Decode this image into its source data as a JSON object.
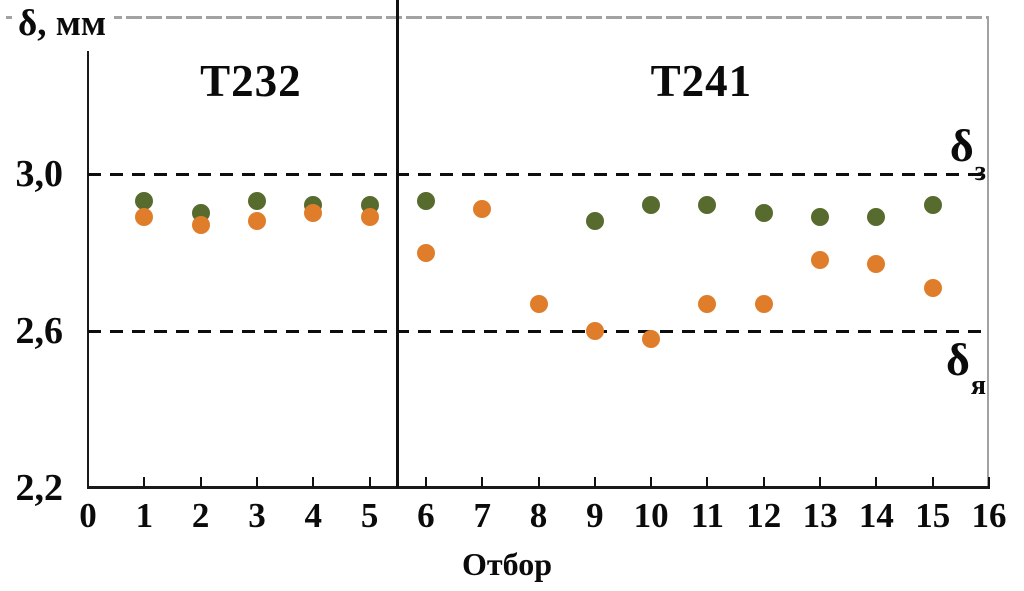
{
  "chart_data": {
    "type": "scatter",
    "title": "",
    "ylabel": "δ, мм",
    "xlabel": "Отбор",
    "xlim": [
      0,
      16
    ],
    "ylim": [
      2.2,
      3.4
    ],
    "grid": false,
    "legend": "none",
    "x_ticks": [
      {
        "label": "0",
        "value": 0
      },
      {
        "label": "1",
        "value": 1
      },
      {
        "label": "2",
        "value": 2
      },
      {
        "label": "3",
        "value": 3
      },
      {
        "label": "4",
        "value": 4
      },
      {
        "label": "5",
        "value": 5
      },
      {
        "label": "6",
        "value": 6
      },
      {
        "label": "7",
        "value": 7
      },
      {
        "label": "8",
        "value": 8
      },
      {
        "label": "9",
        "value": 9
      },
      {
        "label": "10",
        "value": 10
      },
      {
        "label": "11",
        "value": 11
      },
      {
        "label": "12",
        "value": 12
      },
      {
        "label": "13",
        "value": 13
      },
      {
        "label": "14",
        "value": 14
      },
      {
        "label": "15",
        "value": 15
      },
      {
        "label": "16",
        "value": 16
      }
    ],
    "y_ticks": [
      {
        "label": "3,0",
        "value": 3.0
      },
      {
        "label": "2,6",
        "value": 2.6
      },
      {
        "label": "2,2",
        "value": 2.2
      }
    ],
    "divider_x": 5.5,
    "regions": [
      {
        "label": "T232",
        "x_range": [
          0,
          5.5
        ]
      },
      {
        "label": "T241",
        "x_range": [
          5.5,
          16
        ]
      }
    ],
    "limit_lines": [
      {
        "name": "upper",
        "label_main": "δ",
        "label_sub": "з",
        "value": 3.0
      },
      {
        "name": "lower",
        "label_main": "δ",
        "label_sub": "я",
        "value": 2.6
      }
    ],
    "series": [
      {
        "name": "series-green",
        "color": "#566b2d",
        "x": [
          1,
          2,
          3,
          4,
          5,
          6,
          9,
          10,
          11,
          12,
          13,
          14,
          15
        ],
        "values": [
          2.93,
          2.9,
          2.93,
          2.92,
          2.92,
          2.93,
          2.88,
          2.92,
          2.92,
          2.9,
          2.89,
          2.89,
          2.92
        ]
      },
      {
        "name": "series-orange",
        "color": "#e07d2b",
        "x": [
          1,
          2,
          3,
          4,
          5,
          6,
          7,
          8,
          9,
          10,
          11,
          12,
          13,
          14,
          15
        ],
        "values": [
          2.89,
          2.87,
          2.88,
          2.9,
          2.89,
          2.8,
          2.91,
          2.67,
          2.6,
          2.58,
          2.67,
          2.67,
          2.78,
          2.77,
          2.71
        ]
      }
    ]
  }
}
